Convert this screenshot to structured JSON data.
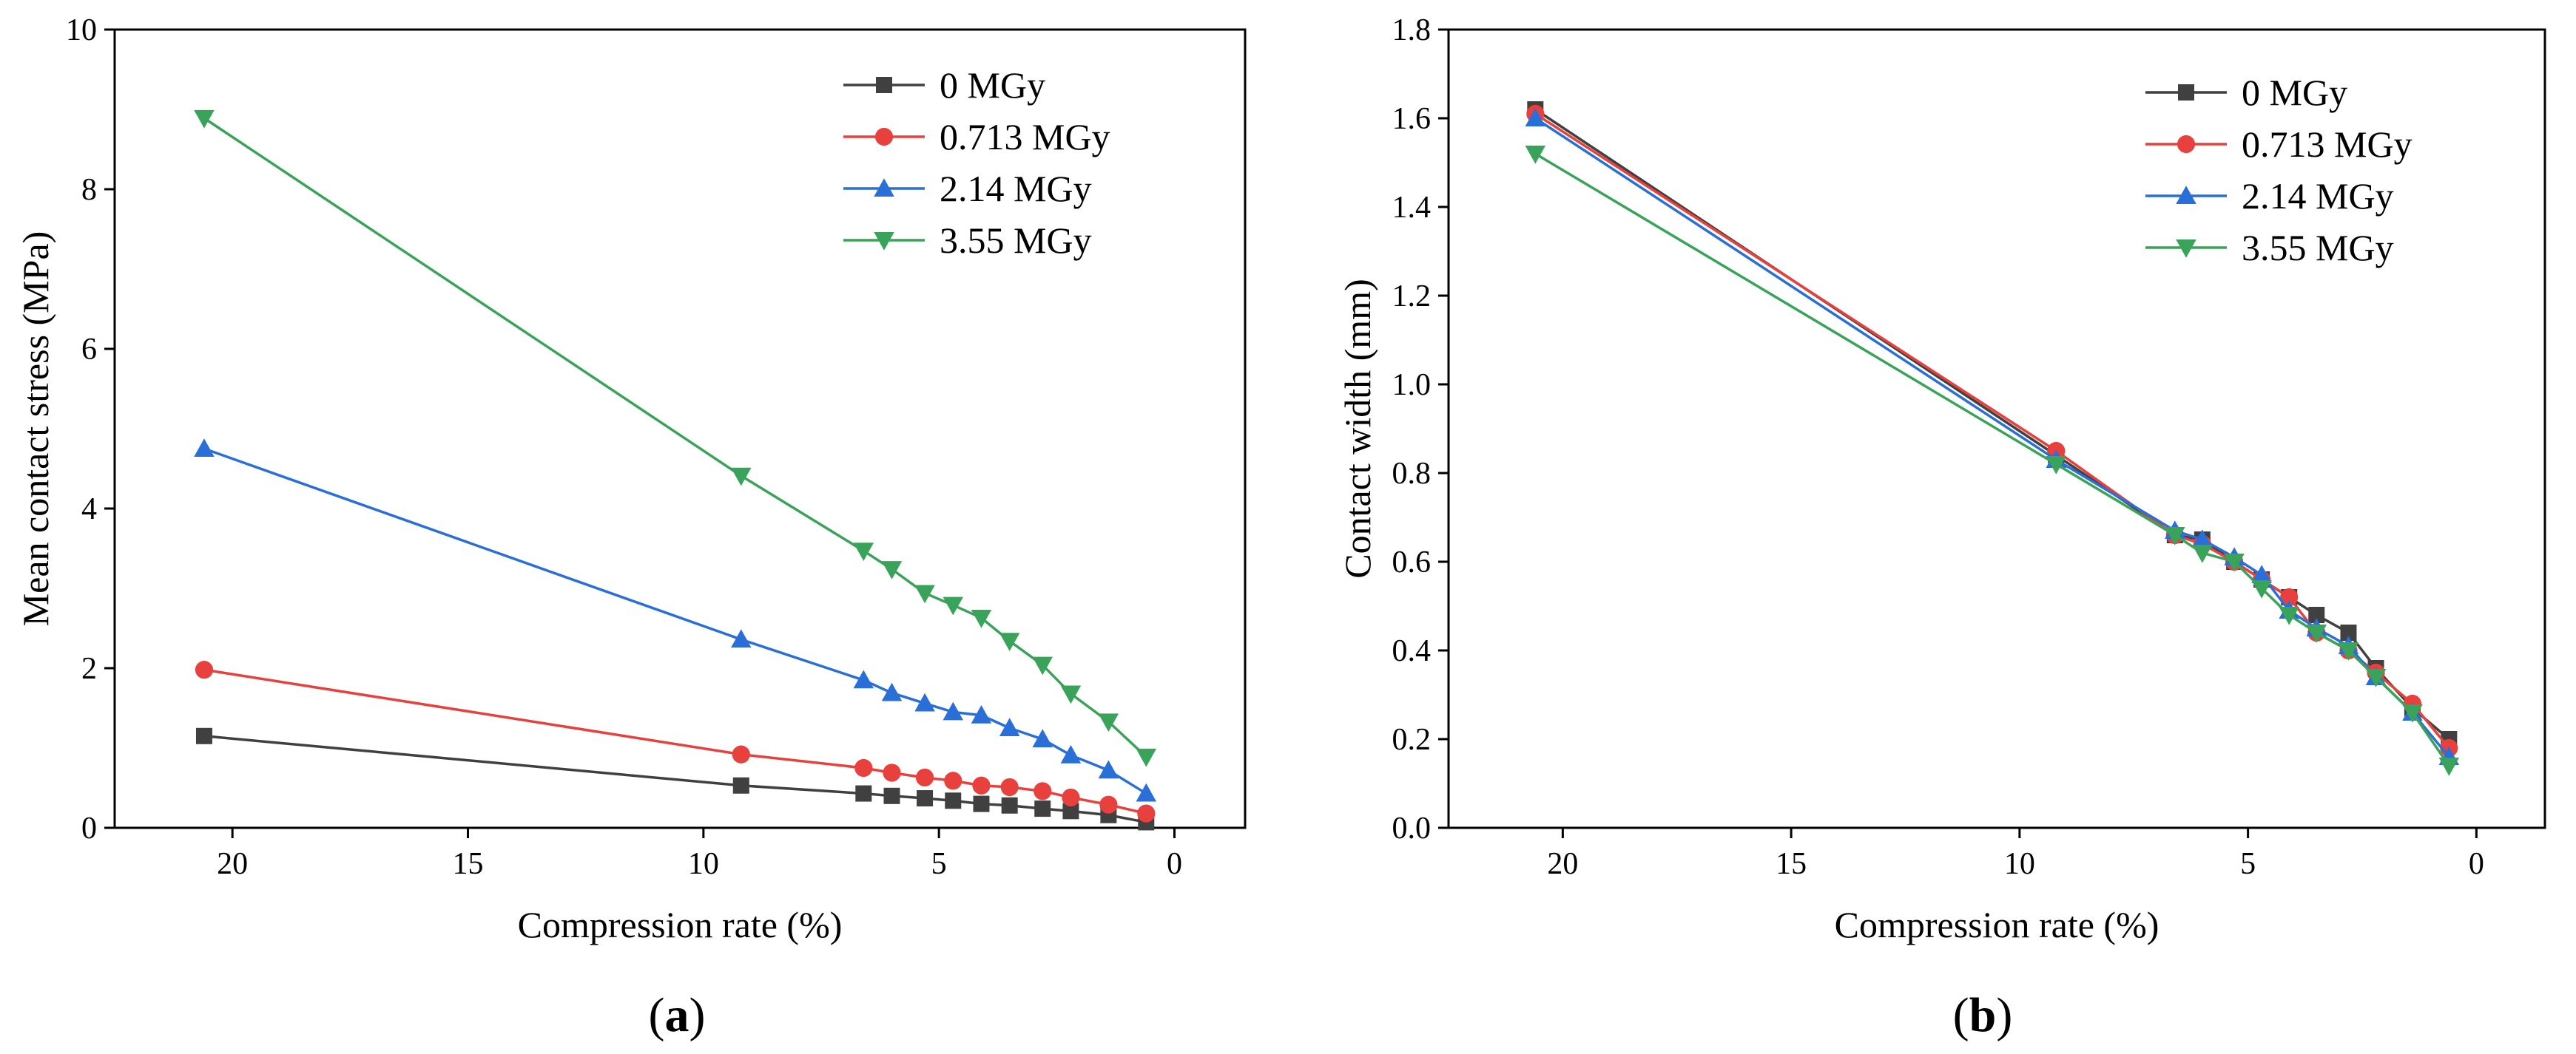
{
  "chart_data": [
    {
      "type": "line",
      "panel_label": "a",
      "xlabel": "Compression rate (%)",
      "ylabel": "Mean contact stress (MPa)",
      "xlim": [
        22.5,
        -1.5
      ],
      "ylim": [
        0,
        10
      ],
      "xticks": [
        20,
        15,
        10,
        5,
        0
      ],
      "yticks": [
        0,
        2,
        4,
        6,
        8,
        10
      ],
      "ytick_labels": [
        "0",
        "2",
        "4",
        "6",
        "8",
        "10"
      ],
      "grid": false,
      "legend_position": "top-right",
      "x": [
        20.6,
        9.2,
        6.6,
        6.0,
        5.3,
        4.7,
        4.1,
        3.5,
        2.8,
        2.2,
        1.4,
        0.6
      ],
      "series": [
        {
          "name": "0 MGy",
          "color": "#404040",
          "marker": "square",
          "values": [
            1.15,
            0.53,
            0.43,
            0.4,
            0.37,
            0.34,
            0.3,
            0.28,
            0.24,
            0.21,
            0.16,
            0.07
          ]
        },
        {
          "name": "0.713 MGy",
          "color": "#e8403d",
          "marker": "circle",
          "values": [
            1.98,
            0.92,
            0.75,
            0.69,
            0.63,
            0.59,
            0.53,
            0.51,
            0.46,
            0.38,
            0.29,
            0.18
          ]
        },
        {
          "name": "2.14 MGy",
          "color": "#2a6fd8",
          "marker": "triangle-up",
          "values": [
            4.75,
            2.36,
            1.85,
            1.69,
            1.56,
            1.45,
            1.41,
            1.25,
            1.11,
            0.91,
            0.72,
            0.43
          ]
        },
        {
          "name": "3.55 MGy",
          "color": "#3aa35a",
          "marker": "triangle-down",
          "values": [
            8.89,
            4.41,
            3.47,
            3.24,
            2.94,
            2.79,
            2.63,
            2.34,
            2.04,
            1.68,
            1.33,
            0.89
          ]
        }
      ]
    },
    {
      "type": "line",
      "panel_label": "b",
      "xlabel": "Compression rate (%)",
      "ylabel": "Contact width (mm)",
      "xlim": [
        22.5,
        -1.5
      ],
      "ylim": [
        0,
        1.8
      ],
      "xticks": [
        20,
        15,
        10,
        5,
        0
      ],
      "yticks": [
        0,
        0.2,
        0.4,
        0.6,
        0.8,
        1.0,
        1.2,
        1.4,
        1.6,
        1.8
      ],
      "ytick_labels": [
        "0.0",
        "0.2",
        "0.4",
        "0.6",
        "0.8",
        "1.0",
        "1.2",
        "1.4",
        "1.6",
        "1.8"
      ],
      "grid": false,
      "legend_position": "top-right",
      "x": [
        20.6,
        9.2,
        6.6,
        6.0,
        5.3,
        4.7,
        4.1,
        3.5,
        2.8,
        2.2,
        1.4,
        0.6
      ],
      "series": [
        {
          "name": "0 MGy",
          "color": "#404040",
          "marker": "square",
          "values": [
            1.62,
            0.84,
            0.66,
            0.65,
            0.6,
            0.56,
            0.52,
            0.48,
            0.44,
            0.36,
            0.27,
            0.2
          ]
        },
        {
          "name": "0.713 MGy",
          "color": "#e8403d",
          "marker": "circle",
          "values": [
            1.61,
            0.85,
            0.66,
            0.64,
            0.6,
            0.56,
            0.52,
            0.44,
            0.4,
            0.35,
            0.28,
            0.18
          ]
        },
        {
          "name": "2.14 MGy",
          "color": "#2a6fd8",
          "marker": "triangle-up",
          "values": [
            1.6,
            0.83,
            0.67,
            0.65,
            0.61,
            0.57,
            0.49,
            0.45,
            0.41,
            0.34,
            0.26,
            0.16
          ]
        },
        {
          "name": "3.55 MGy",
          "color": "#3aa35a",
          "marker": "triangle-down",
          "values": [
            1.52,
            0.82,
            0.66,
            0.62,
            0.6,
            0.54,
            0.48,
            0.44,
            0.4,
            0.34,
            0.26,
            0.14
          ]
        }
      ]
    }
  ]
}
